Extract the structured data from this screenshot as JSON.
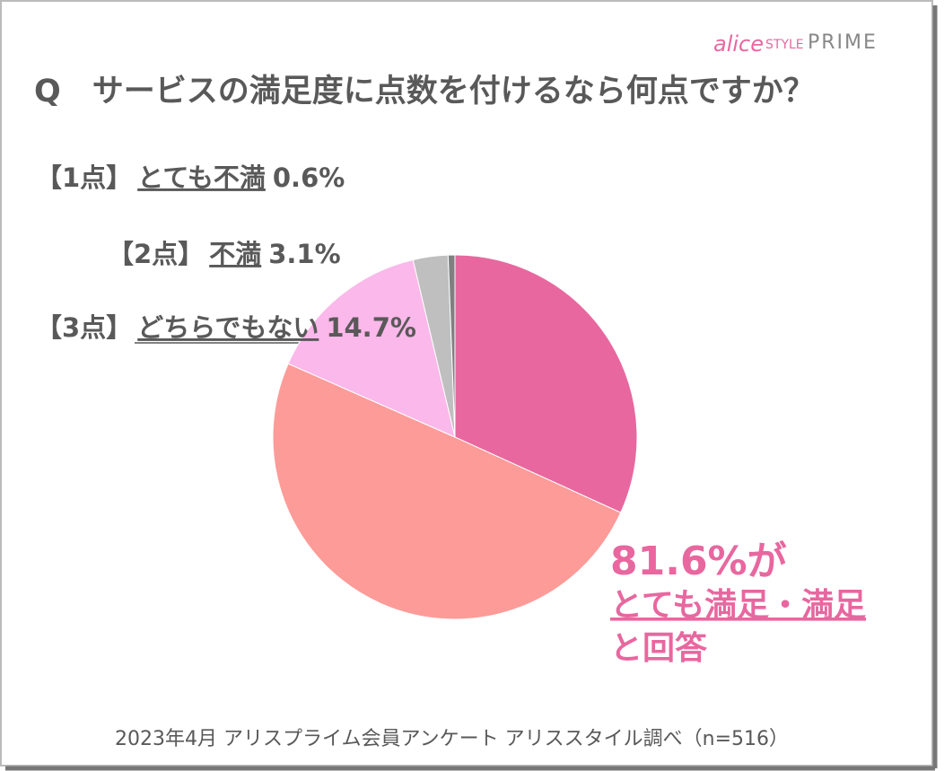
{
  "logo": {
    "script": "alice",
    "style": "STYLE",
    "brand": "PRIME"
  },
  "chart_data": {
    "type": "pie",
    "title": "Q　サービスの満足度に点数を付けるなら何点ですか？",
    "points": [
      null,
      null,
      "【3点】",
      "【2点】",
      "【1点】"
    ],
    "categories": [
      null,
      null,
      "どちらでもない",
      "不満",
      "とても不満"
    ],
    "values": [
      31.8,
      49.8,
      14.7,
      3.1,
      0.6
    ],
    "value_labels": [
      null,
      null,
      "14.7%",
      "3.1%",
      "0.6%"
    ],
    "colors": [
      "#e8679f",
      "#fd9b98",
      "#fbb8ea",
      "#bfbfbf",
      "#7f7f7f"
    ],
    "annotation": [
      "81.6%が",
      "とても満足・満足",
      "と回答"
    ],
    "source": "2023年4月 アリスプライム会員アンケート アリススタイル調べ（n=516）"
  }
}
